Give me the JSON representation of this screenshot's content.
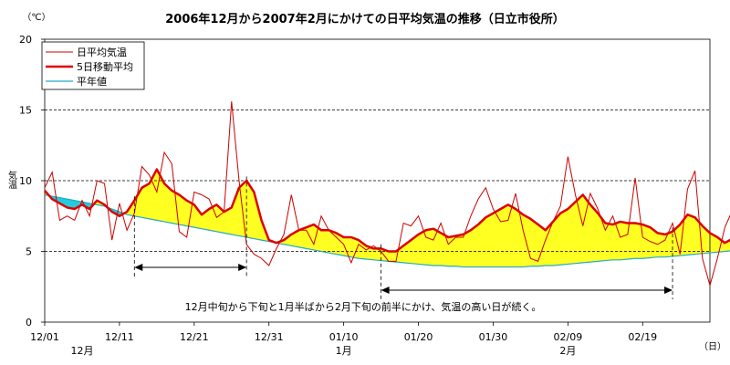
{
  "chart_data": {
    "type": "line",
    "title": "2006年12月から2007年2月にかけての日平均気温の推移（日立市役所）",
    "unit_label": "（℃）",
    "ylabel": "気温",
    "xlabel": "（日）",
    "ylim": [
      0,
      20
    ],
    "yticks": [
      "0",
      "5",
      "10",
      "15",
      "20"
    ],
    "grid_y": [
      5,
      10,
      15
    ],
    "x_start": "2006-12-01",
    "x_end": "2007-02-28",
    "x_ticks": [
      "12/01",
      "12/11",
      "12/21",
      "12/31",
      "01/10",
      "01/20",
      "01/30",
      "02/09",
      "02/19"
    ],
    "months": [
      "12月",
      "1月",
      "2月"
    ],
    "legend_position": "top-left",
    "series": [
      {
        "name": "日平均気温",
        "color": "#cc0000",
        "values": [
          9.5,
          10.6,
          7.2,
          7.5,
          7.2,
          8.6,
          7.5,
          10.0,
          9.8,
          5.8,
          8.4,
          6.5,
          7.7,
          11.0,
          10.4,
          9.2,
          12.0,
          11.2,
          6.4,
          6.0,
          9.2,
          9.0,
          8.7,
          7.4,
          7.8,
          15.6,
          10.0,
          5.5,
          4.8,
          4.5,
          4.0,
          5.2,
          6.2,
          9.0,
          6.5,
          6.5,
          5.5,
          7.5,
          6.5,
          6.0,
          5.5,
          4.2,
          5.5,
          5.1,
          5.4,
          5.0,
          4.3,
          4.3,
          7.0,
          6.8,
          7.5,
          6.0,
          5.8,
          7.0,
          5.5,
          6.0,
          6.0,
          7.5,
          8.7,
          9.5,
          8.0,
          7.1,
          7.2,
          9.1,
          6.5,
          4.5,
          4.3,
          5.8,
          7.1,
          8.2,
          11.7,
          9.0,
          6.8,
          9.1,
          8.0,
          6.5,
          7.5,
          6.0,
          6.2,
          10.2,
          6.0,
          5.7,
          5.5,
          5.8,
          7.0,
          4.8,
          9.4,
          10.7,
          4.5,
          2.6
        ],
        "extra": [
          4.5,
          6.7,
          7.9,
          8.1
        ]
      },
      {
        "name": "5日移動平均",
        "color": "#dd0000",
        "values": [
          9.3,
          8.7,
          8.4,
          8.1,
          8.0,
          8.3,
          8.0,
          8.6,
          8.3,
          7.8,
          7.5,
          7.8,
          8.6,
          9.5,
          9.8,
          10.8,
          9.8,
          9.3,
          9.0,
          8.6,
          8.3,
          7.6,
          8.0,
          8.3,
          7.8,
          8.1,
          9.5,
          10.0,
          9.2,
          7.2,
          5.8,
          5.6,
          5.8,
          6.2,
          6.5,
          6.7,
          6.9,
          6.5,
          6.5,
          6.3,
          6.0,
          6.0,
          5.8,
          5.4,
          5.2,
          5.2,
          5.0,
          5.0,
          5.4,
          5.8,
          6.2,
          6.5,
          6.6,
          6.3,
          6.0,
          6.1,
          6.2,
          6.5,
          6.9,
          7.4,
          7.7,
          8.0,
          8.3,
          8.0,
          7.6,
          7.3,
          6.9,
          6.5,
          7.1,
          7.7,
          8.0,
          8.5,
          9.0,
          8.3,
          7.7,
          7.0,
          6.9,
          7.1,
          7.0,
          7.0,
          6.9,
          6.7,
          6.3,
          6.2,
          6.4,
          6.9,
          7.6,
          7.4,
          6.8,
          6.3
        ],
        "extra": [
          6.0,
          5.6,
          5.9,
          6.5
        ]
      },
      {
        "name": "平年値",
        "color": "#22aacc",
        "values": [
          9.0,
          8.9,
          8.8,
          8.7,
          8.6,
          8.5,
          8.4,
          8.3,
          8.2,
          8.0,
          7.8,
          7.6,
          7.5,
          7.4,
          7.3,
          7.2,
          7.1,
          7.0,
          6.9,
          6.8,
          6.7,
          6.6,
          6.5,
          6.4,
          6.3,
          6.2,
          6.1,
          6.0,
          5.9,
          5.8,
          5.7,
          5.6,
          5.5,
          5.4,
          5.3,
          5.2,
          5.1,
          5.0,
          4.9,
          4.8,
          4.7,
          4.6,
          4.5,
          4.45,
          4.4,
          4.35,
          4.3,
          4.25,
          4.2,
          4.15,
          4.1,
          4.05,
          4.0,
          4.0,
          3.95,
          3.95,
          3.9,
          3.9,
          3.9,
          3.9,
          3.9,
          3.9,
          3.9,
          3.9,
          3.9,
          3.95,
          3.95,
          4.0,
          4.0,
          4.05,
          4.1,
          4.15,
          4.2,
          4.25,
          4.3,
          4.35,
          4.4,
          4.4,
          4.45,
          4.5,
          4.5,
          4.55,
          4.6,
          4.6,
          4.65,
          4.7,
          4.75,
          4.8,
          4.85,
          4.9
        ],
        "extra": [
          4.95,
          5.0,
          5.05,
          5.1
        ]
      }
    ],
    "annotations": {
      "warm_period_text": "12月中旬から下旬と1月半ばから2月下旬の前半にかけ、気温の高い日が続く。",
      "periods": [
        {
          "start": "2006-12-13",
          "end": "2006-12-28"
        },
        {
          "start": "2007-01-15",
          "end": "2007-02-23"
        }
      ]
    }
  }
}
